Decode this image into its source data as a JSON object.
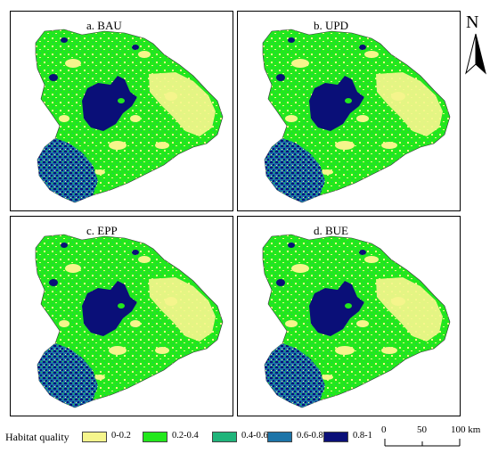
{
  "panels": [
    {
      "label": "a. BAU"
    },
    {
      "label": "b. UPD"
    },
    {
      "label": "c. EPP"
    },
    {
      "label": "d. BUE"
    }
  ],
  "north_arrow": {
    "letter": "N"
  },
  "legend": {
    "title": "Habitat quality",
    "classes": [
      {
        "label": "0-0.2",
        "color": "#f5f58c"
      },
      {
        "label": "0.2-0.4",
        "color": "#22e81c"
      },
      {
        "label": "0.4-0.6",
        "color": "#1fb47a"
      },
      {
        "label": "0.6-0.8",
        "color": "#1d74a8"
      },
      {
        "label": "0.8-1",
        "color": "#0a0f78"
      }
    ]
  },
  "scale_bar": {
    "ticks": [
      "0",
      "50",
      "100 km"
    ]
  }
}
